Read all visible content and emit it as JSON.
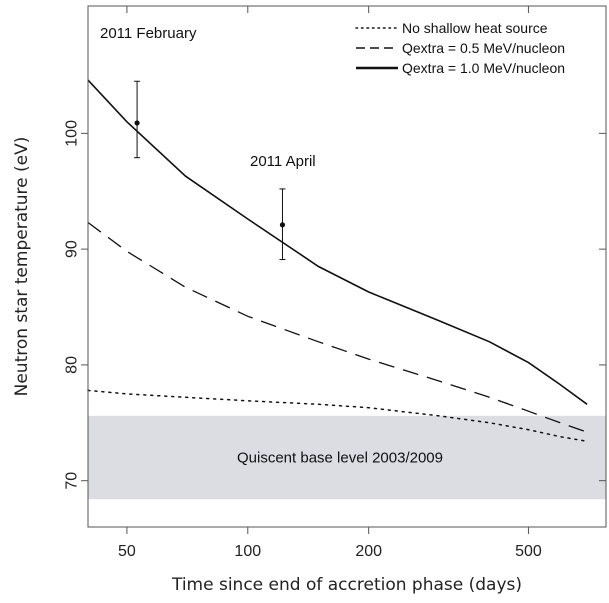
{
  "chart_data": {
    "type": "line",
    "xlabel": "Time since end of accretion phase (days)",
    "ylabel": "Neutron star temperature (eV)",
    "x_scale": "log",
    "xlim": [
      40,
      780
    ],
    "ylim": [
      66,
      111
    ],
    "x_ticks": [
      50,
      100,
      200,
      500
    ],
    "y_ticks": [
      70,
      80,
      90,
      100
    ],
    "grid": false,
    "legend_position": "top-right",
    "shaded_band": {
      "label": "Quiscent base level 2003/2009",
      "y_range": [
        68.4,
        75.6
      ],
      "color": "#dcdde2"
    },
    "series": [
      {
        "name": "No shallow heat source",
        "style": "dotted",
        "x": [
          40,
          50,
          70,
          100,
          150,
          200,
          300,
          400,
          500,
          600,
          700
        ],
        "y": [
          77.8,
          77.5,
          77.2,
          76.9,
          76.6,
          76.3,
          75.6,
          75.0,
          74.4,
          73.8,
          73.4
        ]
      },
      {
        "name": "Qextra = 0.5 MeV/nucleon",
        "style": "dashed",
        "x": [
          40,
          50,
          70,
          100,
          150,
          200,
          300,
          400,
          500,
          600,
          700
        ],
        "y": [
          92.3,
          89.8,
          86.7,
          84.2,
          82.0,
          80.5,
          78.6,
          77.2,
          76.0,
          75.0,
          74.2
        ]
      },
      {
        "name": "Qextra = 1.0 MeV/nucleon",
        "style": "solid",
        "x": [
          40,
          50,
          70,
          100,
          150,
          200,
          300,
          400,
          500,
          600,
          700
        ],
        "y": [
          104.6,
          101.0,
          96.3,
          92.6,
          88.5,
          86.3,
          83.8,
          82.0,
          80.2,
          78.3,
          76.6
        ]
      }
    ],
    "observations": [
      {
        "label": "2011 February",
        "x": 53,
        "y": 100.9,
        "yerr_low": 97.9,
        "yerr_high": 104.5
      },
      {
        "label": "2011 April",
        "x": 122,
        "y": 92.1,
        "yerr_low": 89.1,
        "yerr_high": 95.2
      }
    ],
    "colors": {
      "line": "#111111",
      "axis": "#555555",
      "band": "#dcdde2"
    }
  }
}
